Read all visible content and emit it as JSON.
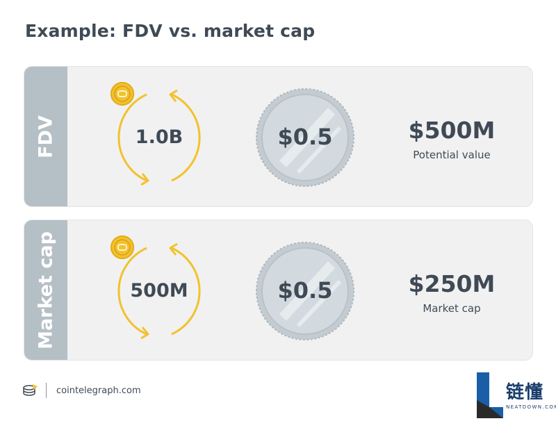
{
  "title": "Example: FDV vs. market cap",
  "cards": [
    {
      "side_label": "FDV",
      "cycle_value": "1.0B",
      "price": "$0.5",
      "value": "$500M",
      "caption": "Potential value"
    },
    {
      "side_label": "Market cap",
      "cycle_value": "500M",
      "price": "$0.5",
      "value": "$250M",
      "caption": "Market cap"
    }
  ],
  "footer": {
    "site": "cointelegraph.com",
    "logo_icon": "cointelegraph-logo-icon"
  },
  "watermark": {
    "cn": "链懂",
    "en": "NEATDOWN.COM"
  },
  "colors": {
    "sidebar": "#b5bfc6",
    "card_bg": "#f1f1f1",
    "coin_gold": "#f2c12e",
    "coin_silver": "#d3dadf",
    "text": "#3f4a55",
    "watermark_blue": "#1a5ea8"
  }
}
